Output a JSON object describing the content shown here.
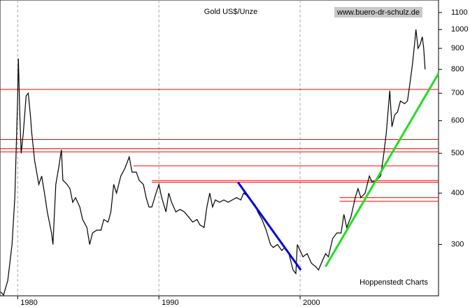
{
  "chart_data": {
    "type": "line",
    "title": "Gold US$/Unze",
    "source": "www.buero-dr-schulz.de",
    "credit": "Hoppenstedt Charts",
    "log_scale": true,
    "grid": true,
    "xlim": [
      1978.75,
      2009.8
    ],
    "ylim": [
      225,
      1180
    ],
    "xticks": [
      1980,
      1990,
      2000
    ],
    "yticks": [
      300,
      400,
      500,
      600,
      700,
      800,
      900,
      1000,
      1100
    ],
    "series": [
      {
        "name": "Gold",
        "color": "#000000",
        "x": [
          1978.8,
          1979.0,
          1979.3,
          1979.6,
          1979.8,
          1980.0,
          1980.05,
          1980.15,
          1980.25,
          1980.4,
          1980.6,
          1980.75,
          1980.9,
          1981.0,
          1981.2,
          1981.5,
          1981.7,
          1981.9,
          1982.1,
          1982.4,
          1982.5,
          1982.7,
          1982.9,
          1983.1,
          1983.2,
          1983.5,
          1983.7,
          1983.9,
          1984.1,
          1984.4,
          1984.6,
          1984.9,
          1985.1,
          1985.3,
          1985.6,
          1985.9,
          1986.1,
          1986.4,
          1986.6,
          1986.8,
          1987.0,
          1987.3,
          1987.6,
          1987.9,
          1988.1,
          1988.4,
          1988.6,
          1988.9,
          1989.1,
          1989.3,
          1989.5,
          1989.8,
          1990.0,
          1990.2,
          1990.5,
          1990.7,
          1990.9,
          1991.2,
          1991.5,
          1991.8,
          1992.1,
          1992.4,
          1992.7,
          1992.9,
          1993.2,
          1993.4,
          1993.6,
          1993.8,
          1994.0,
          1994.3,
          1994.6,
          1994.9,
          1995.2,
          1995.5,
          1995.8,
          1996.0,
          1996.2,
          1996.5,
          1996.8,
          1997.0,
          1997.3,
          1997.6,
          1997.9,
          1998.1,
          1998.4,
          1998.7,
          1998.9,
          1999.2,
          1999.5,
          1999.7,
          1999.8,
          2000.0,
          2000.2,
          2000.5,
          2000.8,
          2001.1,
          2001.3,
          2001.5,
          2001.8,
          2002.0,
          2002.3,
          2002.6,
          2002.9,
          2003.1,
          2003.3,
          2003.6,
          2003.9,
          2004.1,
          2004.3,
          2004.6,
          2004.9,
          2005.1,
          2005.4,
          2005.7,
          2005.9,
          2006.1,
          2006.35,
          2006.5,
          2006.7,
          2006.9,
          2007.1,
          2007.4,
          2007.6,
          2007.8,
          2007.95,
          2008.1,
          2008.2,
          2008.35,
          2008.5,
          2008.65,
          2008.75,
          2008.85
        ],
        "values": [
          230,
          226,
          245,
          300,
          390,
          680,
          850,
          620,
          500,
          560,
          690,
          700,
          620,
          560,
          480,
          420,
          440,
          400,
          360,
          320,
          300,
          420,
          460,
          510,
          430,
          420,
          410,
          380,
          390,
          370,
          345,
          330,
          300,
          320,
          325,
          325,
          345,
          340,
          360,
          420,
          400,
          440,
          460,
          490,
          450,
          450,
          430,
          420,
          390,
          370,
          370,
          400,
          420,
          390,
          360,
          400,
          380,
          360,
          365,
          360,
          350,
          340,
          345,
          335,
          330,
          370,
          400,
          370,
          385,
          380,
          385,
          380,
          385,
          390,
          385,
          400,
          395,
          385,
          375,
          360,
          345,
          325,
          300,
          295,
          300,
          290,
          295,
          285,
          260,
          255,
          300,
          290,
          280,
          285,
          270,
          265,
          260,
          270,
          285,
          280,
          310,
          320,
          320,
          355,
          330,
          350,
          390,
          410,
          390,
          400,
          440,
          425,
          430,
          440,
          490,
          560,
          710,
          580,
          620,
          630,
          670,
          660,
          670,
          750,
          820,
          920,
          1000,
          900,
          920,
          960,
          900,
          800
        ]
      }
    ],
    "reference_lines": [
      {
        "value": 715,
        "from": 1978.75,
        "color": "#ff0000"
      },
      {
        "value": 540,
        "from": 1978.75,
        "color": "#ff0000"
      },
      {
        "value": 513,
        "from": 1978.75,
        "color": "#ff0000"
      },
      {
        "value": 504,
        "from": 1978.75,
        "color": "#ff0000"
      },
      {
        "value": 466,
        "from": 1988.2,
        "color": "#ff0000"
      },
      {
        "value": 429,
        "from": 1989.5,
        "color": "#ff0000"
      },
      {
        "value": 425,
        "from": 1989.5,
        "color": "#ff0000"
      },
      {
        "value": 390,
        "from": 2002.8,
        "color": "#ff0000"
      },
      {
        "value": 382,
        "from": 2002.8,
        "color": "#ff0000"
      }
    ],
    "trend_lines": [
      {
        "color": "#0000dd",
        "x": [
          1995.6,
          2000.05
        ],
        "values": [
          425,
          260
        ]
      },
      {
        "color": "#22dd22",
        "x": [
          2001.8,
          2009.8
        ],
        "values": [
          265,
          782
        ]
      }
    ]
  }
}
